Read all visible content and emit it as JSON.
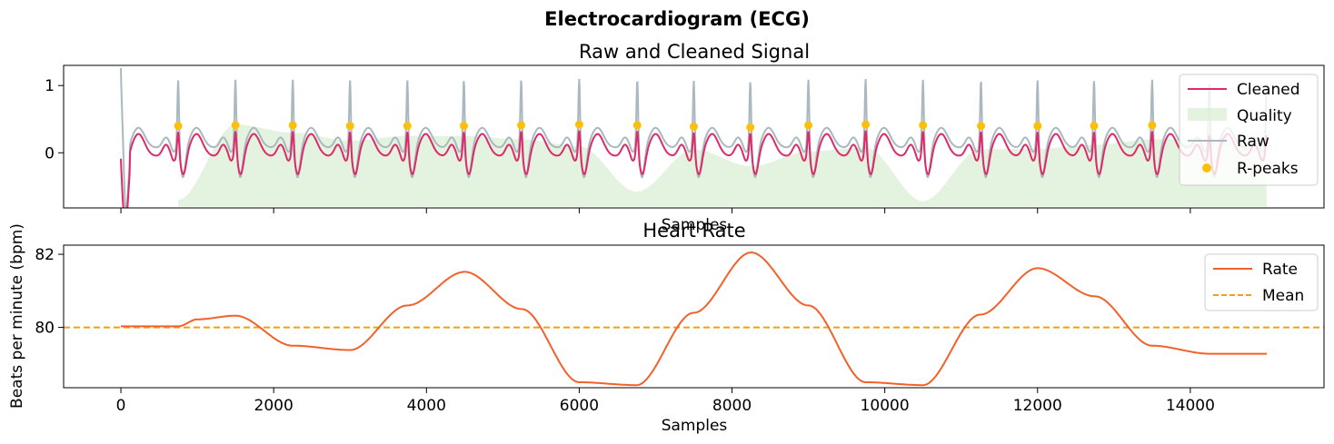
{
  "figure": {
    "title": "Electrocardiogram (ECG)"
  },
  "chart_data": [
    {
      "type": "line",
      "title": "Raw and Cleaned Signal",
      "xlabel": "Samples",
      "ylabel": "",
      "xlim": [
        -750,
        15750
      ],
      "ylim": [
        -0.82,
        1.3
      ],
      "yticks": [
        0,
        1
      ],
      "xticks": [
        0,
        2000,
        4000,
        6000,
        8000,
        10000,
        12000,
        14000
      ],
      "legend": "top-right",
      "legend_labels": [
        "Cleaned",
        "Quality",
        "Raw",
        "R-peaks"
      ],
      "colors": {
        "cleaned": "#dc2a6a",
        "quality": "#d7eed2",
        "raw": "#aab8bf",
        "rpeaks": "#fcc00a"
      },
      "r_peaks_x": [
        750,
        1500,
        2250,
        3000,
        3750,
        4490,
        5240,
        6000,
        6760,
        7500,
        8240,
        9000,
        9750,
        10500,
        11260,
        12000,
        12740,
        13500
      ],
      "r_peaks_y": [
        0.4,
        0.41,
        0.41,
        0.4,
        0.4,
        0.4,
        0.41,
        0.42,
        0.41,
        0.39,
        0.38,
        0.41,
        0.42,
        0.41,
        0.4,
        0.4,
        0.4,
        0.41
      ],
      "quality": {
        "baseline": -0.8,
        "x": [
          750,
          1500,
          2250,
          3000,
          3750,
          4500,
          5250,
          6000,
          6750,
          7500,
          8250,
          9000,
          9750,
          10500,
          11250,
          12000,
          12750,
          13500,
          15000
        ],
        "y": [
          -0.7,
          0.42,
          0.3,
          0.18,
          0.25,
          0.25,
          0.2,
          0.1,
          -0.58,
          0.05,
          -0.2,
          0.02,
          0.08,
          -0.72,
          0.05,
          0.06,
          0.12,
          0.2,
          0.25
        ]
      }
    },
    {
      "type": "line",
      "title": "Heart Rate",
      "xlabel": "Samples",
      "ylabel": "Beats per minute (bpm)",
      "xlim": [
        -750,
        15750
      ],
      "ylim": [
        78.35,
        82.25
      ],
      "yticks": [
        80,
        82
      ],
      "xticks": [
        0,
        2000,
        4000,
        6000,
        8000,
        10000,
        12000,
        14000
      ],
      "legend": "top-right",
      "legend_labels": [
        "Rate",
        "Mean"
      ],
      "colors": {
        "rate": "#f26129",
        "mean": "#ff9a0a"
      },
      "mean": 80.0,
      "rate": {
        "x": [
          0,
          750,
          1000,
          1500,
          2250,
          3000,
          3750,
          4500,
          5250,
          6000,
          6750,
          7500,
          8250,
          9000,
          9750,
          10500,
          11250,
          12000,
          12750,
          13500,
          14250,
          15000
        ],
        "y": [
          80.03,
          80.03,
          80.22,
          80.32,
          79.5,
          79.38,
          80.6,
          81.52,
          80.5,
          78.5,
          78.42,
          80.4,
          82.05,
          80.6,
          78.5,
          78.42,
          80.35,
          81.62,
          80.85,
          79.5,
          79.28,
          79.28
        ]
      }
    }
  ]
}
